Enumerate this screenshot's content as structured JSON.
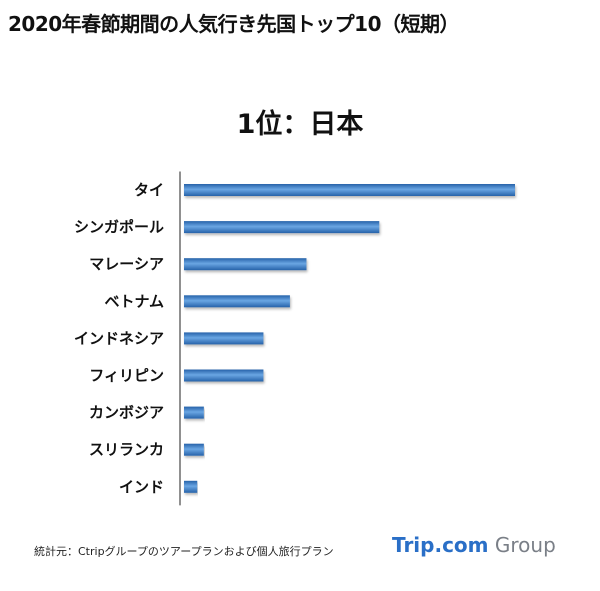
{
  "title": "2020年春節期間の人気行き先国トップ10（短期）",
  "rank_heading": "1位：日本",
  "source_note": "統計元：Ctripグループのツアープランおよび個人旅行プラン",
  "logo": {
    "trip": "Trip.com",
    "group": "Group"
  },
  "colors": {
    "bar_dark": "#2662a9",
    "bar_light": "#6aa6e3",
    "axis": "#222222"
  },
  "chart_data": {
    "type": "bar",
    "orientation": "horizontal",
    "categories": [
      "タイ",
      "シンガポール",
      "マレーシア",
      "ベトナム",
      "インドネシア",
      "フィリピン",
      "カンボジア",
      "スリランカ",
      "インド"
    ],
    "values": [
      100,
      59,
      37,
      32,
      24,
      24,
      6,
      6,
      4
    ],
    "xlim": [
      0,
      100
    ],
    "value_axis_labels": false,
    "grid": false,
    "legend": "none"
  }
}
